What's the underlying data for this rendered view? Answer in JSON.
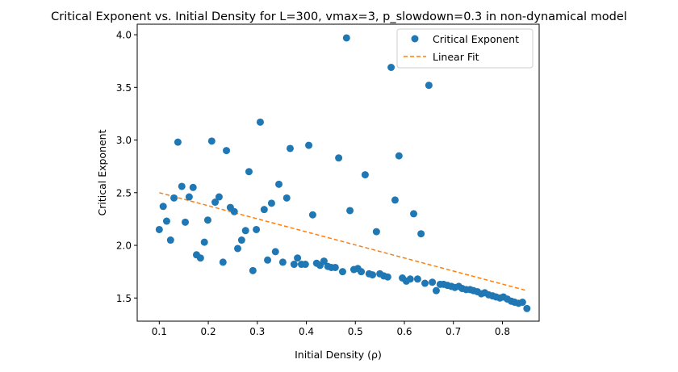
{
  "chart_data": {
    "type": "scatter",
    "title": "Critical Exponent vs. Initial Density for L=300, vmax=3, p_slowdown=0.3 in non-dynamical model",
    "xlabel": "Initial Density (ρ)",
    "ylabel": "Critical Exponent",
    "xlim": [
      0.055,
      0.875
    ],
    "ylim": [
      1.28,
      4.1
    ],
    "xticks": [
      0.1,
      0.2,
      0.3,
      0.4,
      0.5,
      0.6,
      0.7,
      0.8
    ],
    "xtick_labels": [
      "0.1",
      "0.2",
      "0.3",
      "0.4",
      "0.5",
      "0.6",
      "0.7",
      "0.8"
    ],
    "yticks": [
      1.5,
      2.0,
      2.5,
      3.0,
      3.5,
      4.0
    ],
    "ytick_labels": [
      "1.5",
      "2.0",
      "2.5",
      "3.0",
      "3.5",
      "4.0"
    ],
    "grid": false,
    "legend_position": "top-right",
    "series": [
      {
        "name": "Critical Exponent",
        "kind": "scatter",
        "color": "#1f77b4",
        "points": [
          [
            0.1,
            2.15
          ],
          [
            0.108,
            2.37
          ],
          [
            0.115,
            2.23
          ],
          [
            0.123,
            2.05
          ],
          [
            0.13,
            2.45
          ],
          [
            0.138,
            2.98
          ],
          [
            0.146,
            2.56
          ],
          [
            0.153,
            2.22
          ],
          [
            0.161,
            2.46
          ],
          [
            0.169,
            2.55
          ],
          [
            0.176,
            1.91
          ],
          [
            0.184,
            1.88
          ],
          [
            0.192,
            2.03
          ],
          [
            0.199,
            2.24
          ],
          [
            0.207,
            2.99
          ],
          [
            0.214,
            2.41
          ],
          [
            0.222,
            2.46
          ],
          [
            0.23,
            1.84
          ],
          [
            0.237,
            2.9
          ],
          [
            0.245,
            2.36
          ],
          [
            0.253,
            2.32
          ],
          [
            0.26,
            1.97
          ],
          [
            0.268,
            2.05
          ],
          [
            0.276,
            2.14
          ],
          [
            0.283,
            2.7
          ],
          [
            0.291,
            1.76
          ],
          [
            0.298,
            2.15
          ],
          [
            0.306,
            3.17
          ],
          [
            0.314,
            2.34
          ],
          [
            0.321,
            1.86
          ],
          [
            0.329,
            2.4
          ],
          [
            0.337,
            1.94
          ],
          [
            0.344,
            2.58
          ],
          [
            0.352,
            1.84
          ],
          [
            0.36,
            2.45
          ],
          [
            0.367,
            2.92
          ],
          [
            0.375,
            1.82
          ],
          [
            0.382,
            1.88
          ],
          [
            0.39,
            1.82
          ],
          [
            0.398,
            1.82
          ],
          [
            0.405,
            2.95
          ],
          [
            0.413,
            2.29
          ],
          [
            0.421,
            1.83
          ],
          [
            0.428,
            1.81
          ],
          [
            0.436,
            1.85
          ],
          [
            0.444,
            1.8
          ],
          [
            0.451,
            1.79
          ],
          [
            0.459,
            1.79
          ],
          [
            0.466,
            2.83
          ],
          [
            0.474,
            1.75
          ],
          [
            0.482,
            3.97
          ],
          [
            0.489,
            2.33
          ],
          [
            0.497,
            1.77
          ],
          [
            0.505,
            1.78
          ],
          [
            0.512,
            1.75
          ],
          [
            0.52,
            2.67
          ],
          [
            0.528,
            1.73
          ],
          [
            0.535,
            1.72
          ],
          [
            0.543,
            2.13
          ],
          [
            0.55,
            1.73
          ],
          [
            0.558,
            1.71
          ],
          [
            0.566,
            1.7
          ],
          [
            0.573,
            3.69
          ],
          [
            0.581,
            2.43
          ],
          [
            0.589,
            2.85
          ],
          [
            0.596,
            1.69
          ],
          [
            0.604,
            1.66
          ],
          [
            0.612,
            1.68
          ],
          [
            0.619,
            2.3
          ],
          [
            0.627,
            1.68
          ],
          [
            0.634,
            2.11
          ],
          [
            0.642,
            1.64
          ],
          [
            0.65,
            3.52
          ],
          [
            0.657,
            1.65
          ],
          [
            0.665,
            1.57
          ],
          [
            0.673,
            1.63
          ],
          [
            0.68,
            1.63
          ],
          [
            0.688,
            1.62
          ],
          [
            0.696,
            1.61
          ],
          [
            0.703,
            1.6
          ],
          [
            0.711,
            1.61
          ],
          [
            0.718,
            1.59
          ],
          [
            0.726,
            1.58
          ],
          [
            0.734,
            1.58
          ],
          [
            0.741,
            1.57
          ],
          [
            0.749,
            1.56
          ],
          [
            0.757,
            1.54
          ],
          [
            0.764,
            1.55
          ],
          [
            0.772,
            1.53
          ],
          [
            0.78,
            1.52
          ],
          [
            0.787,
            1.51
          ],
          [
            0.795,
            1.5
          ],
          [
            0.802,
            1.51
          ],
          [
            0.81,
            1.49
          ],
          [
            0.818,
            1.47
          ],
          [
            0.825,
            1.46
          ],
          [
            0.833,
            1.45
          ],
          [
            0.841,
            1.46
          ],
          [
            0.85,
            1.4
          ]
        ]
      },
      {
        "name": "Linear Fit",
        "kind": "line",
        "style": "dashed",
        "color": "#ff7f0e",
        "points": [
          [
            0.1,
            2.5
          ],
          [
            0.85,
            1.57
          ]
        ]
      }
    ]
  }
}
